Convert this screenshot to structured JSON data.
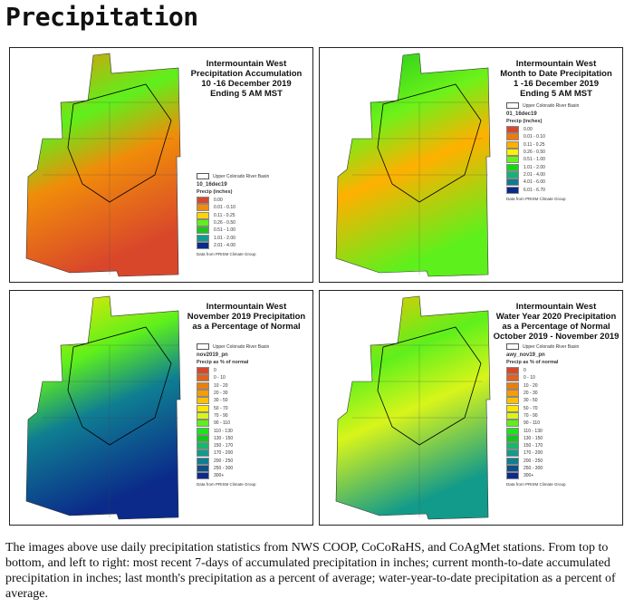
{
  "page_title": "Precipitation",
  "panels": [
    {
      "title": [
        "Intermountain West",
        "Precipitation Accumulation",
        "10 -16 December 2019",
        "Ending 5 AM MST"
      ],
      "basin_label": "Upper Colorado River Basin",
      "layer": "10_16dec19",
      "unit": "Precip (inches)",
      "classes": [
        {
          "label": "0.00",
          "color": "#d9472b"
        },
        {
          "label": "0.01 - 0.10",
          "color": "#f08c0a"
        },
        {
          "label": "0.11 - 0.25",
          "color": "#ffd400"
        },
        {
          "label": "0.26 - 0.50",
          "color": "#5ef01c"
        },
        {
          "label": "0.51 - 1.00",
          "color": "#1cc61c"
        },
        {
          "label": "1.01 - 2.00",
          "color": "#129a90"
        },
        {
          "label": "2.01 - 4.00",
          "color": "#0b2a8a"
        }
      ],
      "source": "Data from PRISM Climate Group"
    },
    {
      "title": [
        "Intermountain West",
        "Month to Date Precipitation",
        "1 -16 December 2019",
        "Ending 5 AM MST"
      ],
      "basin_label": "Upper Colorado River Basin",
      "layer": "01_16dec19",
      "unit": "Precip (inches)",
      "classes": [
        {
          "label": "0.00",
          "color": "#d9472b"
        },
        {
          "label": "0.01 - 0.10",
          "color": "#ef7a0c"
        },
        {
          "label": "0.11 - 0.25",
          "color": "#ffb000"
        },
        {
          "label": "0.26 - 0.50",
          "color": "#fff200"
        },
        {
          "label": "0.51 - 1.00",
          "color": "#6cf21a"
        },
        {
          "label": "1.01 - 2.00",
          "color": "#12d812"
        },
        {
          "label": "2.01 - 4.00",
          "color": "#18b07a"
        },
        {
          "label": "4.01 - 6.00",
          "color": "#107a90"
        },
        {
          "label": "6.01 - 6.70",
          "color": "#0b2a8a"
        }
      ],
      "source": "Data from PRISM Climate Group"
    },
    {
      "title": [
        "Intermountain West",
        "November 2019 Precipitation",
        "as a Percentage of Normal"
      ],
      "basin_label": "Upper Colorado River Basin",
      "layer": "nov2019_pn",
      "unit": "Precip as % of normal",
      "classes": [
        {
          "label": "0",
          "color": "#d9472b"
        },
        {
          "label": "0 - 10",
          "color": "#e0621e"
        },
        {
          "label": "10 - 20",
          "color": "#ec7e0c"
        },
        {
          "label": "20 - 30",
          "color": "#f59c08"
        },
        {
          "label": "30 - 50",
          "color": "#ffc000"
        },
        {
          "label": "50 - 70",
          "color": "#ffe600"
        },
        {
          "label": "70 - 90",
          "color": "#d8f51a"
        },
        {
          "label": "90 - 110",
          "color": "#5ef01c"
        },
        {
          "label": "110 - 130",
          "color": "#1ee21e"
        },
        {
          "label": "130 - 150",
          "color": "#12c81a"
        },
        {
          "label": "150 - 170",
          "color": "#16b86a"
        },
        {
          "label": "170 - 200",
          "color": "#129a8a"
        },
        {
          "label": "200 - 250",
          "color": "#0f7e92"
        },
        {
          "label": "250 - 300",
          "color": "#0d4f86"
        },
        {
          "label": "300+",
          "color": "#0b2a8a"
        }
      ],
      "source": "Data from PRISM Climate Group"
    },
    {
      "title": [
        "Intermountain West",
        "Water Year 2020 Precipitation",
        "as a Percentage of Normal",
        "October 2019 - November 2019"
      ],
      "basin_label": "Upper Colorado River Basin",
      "layer": "awy_nov19_pn",
      "unit": "Precip as % of normal",
      "classes": [
        {
          "label": "0",
          "color": "#d9472b"
        },
        {
          "label": "0 - 10",
          "color": "#e0621e"
        },
        {
          "label": "10 - 20",
          "color": "#ec7e0c"
        },
        {
          "label": "20 - 30",
          "color": "#f59c08"
        },
        {
          "label": "30 - 50",
          "color": "#ffc000"
        },
        {
          "label": "50 - 70",
          "color": "#ffe600"
        },
        {
          "label": "70 - 90",
          "color": "#d8f51a"
        },
        {
          "label": "90 - 110",
          "color": "#5ef01c"
        },
        {
          "label": "110 - 130",
          "color": "#1ee21e"
        },
        {
          "label": "130 - 150",
          "color": "#12c81a"
        },
        {
          "label": "150 - 170",
          "color": "#16b86a"
        },
        {
          "label": "170 - 200",
          "color": "#129a8a"
        },
        {
          "label": "200 - 250",
          "color": "#0f7e92"
        },
        {
          "label": "250 - 300",
          "color": "#0d4f86"
        },
        {
          "label": "300+",
          "color": "#0b2a8a"
        }
      ],
      "source": "Data from PRISM Climate Group"
    }
  ],
  "map_fills": [
    [
      "#f08c0a",
      "#5ef01c",
      "#f08c0a",
      "#d9472b"
    ],
    [
      "#1cc61c",
      "#6cf21a",
      "#ffb000",
      "#5ef01c"
    ],
    [
      "#ffe600",
      "#5ef01c",
      "#0f7e92",
      "#0b2a8a"
    ],
    [
      "#ffc000",
      "#5ef01c",
      "#d8f51a",
      "#129a8a"
    ]
  ],
  "caption": "The images above use daily precipitation statistics from NWS COOP, CoCoRaHS, and CoAgMet stations. From top to bottom, and left to right: most recent 7-days of accumulated precipitation in inches; current month-to-date accumulated precipitation in inches; last month's precipitation as a percent of average; water-year-to-date precipitation as a percent of average."
}
